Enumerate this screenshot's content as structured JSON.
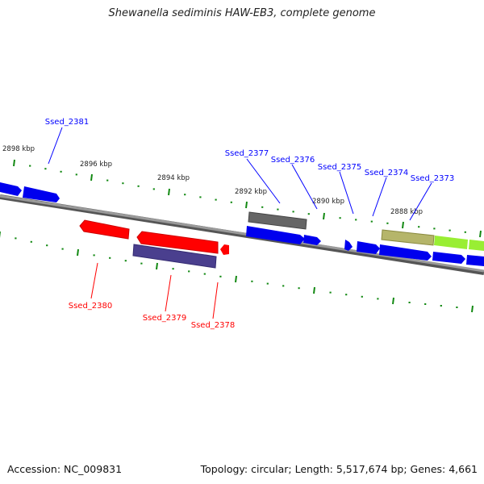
{
  "title": "Shewanella sediminis HAW-EB3, complete genome",
  "footer": {
    "accession": "Accession: NC_009831",
    "summary": "Topology: circular; Length: 5,517,674 bp; Genes: 4,661"
  },
  "colors": {
    "forward_label": "#0000ff",
    "reverse_label": "#ff0000",
    "tick": "#118811",
    "backbone": "#808080"
  },
  "ruler_labels": [
    "2898 kbp",
    "2896 kbp",
    "2894 kbp",
    "2892 kbp",
    "2890 kbp",
    "2888 kbp"
  ],
  "genes_forward": [
    "Ssed_2381",
    "Ssed_2377",
    "Ssed_2376",
    "Ssed_2375",
    "Ssed_2374",
    "Ssed_2373"
  ],
  "genes_reverse": [
    "Ssed_2380",
    "Ssed_2379",
    "Ssed_2378"
  ]
}
